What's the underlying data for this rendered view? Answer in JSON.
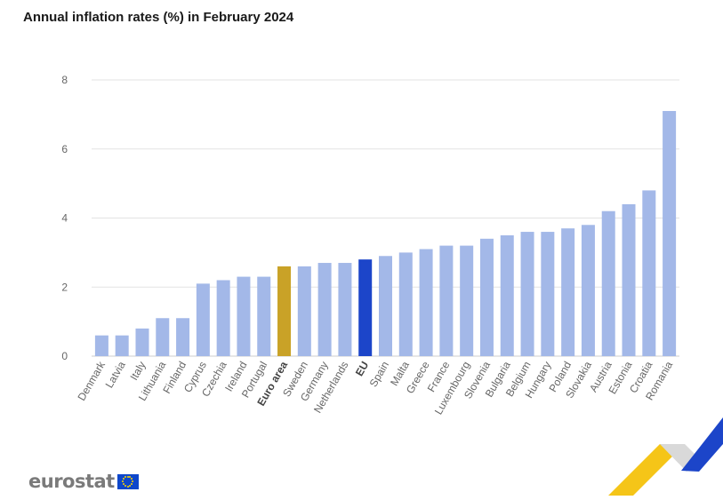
{
  "chart_data": {
    "type": "bar",
    "title": "Annual inflation rates (%) in February 2024",
    "xlabel": "",
    "ylabel": "",
    "ylim": [
      0,
      8
    ],
    "yticks": [
      "0",
      "2",
      "4",
      "6",
      "8"
    ],
    "grid": true,
    "categories": [
      "Denmark",
      "Latvia",
      "Italy",
      "Lithuania",
      "Finland",
      "Cyprus",
      "Czechia",
      "Ireland",
      "Portugal",
      "Euro area",
      "Sweden",
      "Germany",
      "Netherlands",
      "EU",
      "Spain",
      "Malta",
      "Greece",
      "France",
      "Luxembourg",
      "Slovenia",
      "Bulgaria",
      "Belgium",
      "Hungary",
      "Poland",
      "Slovakia",
      "Austria",
      "Estonia",
      "Croatia",
      "Romania"
    ],
    "values": [
      0.6,
      0.6,
      0.8,
      1.1,
      1.1,
      2.1,
      2.2,
      2.3,
      2.3,
      2.6,
      2.6,
      2.7,
      2.7,
      2.8,
      2.9,
      3.0,
      3.1,
      3.2,
      3.2,
      3.4,
      3.5,
      3.6,
      3.6,
      3.7,
      3.8,
      4.2,
      4.4,
      4.8,
      7.1
    ],
    "highlight": {
      "Euro area": "#c9a227",
      "EU": "#1c45c9"
    },
    "bold_labels": [
      "Euro area",
      "EU"
    ],
    "colors": {
      "default_bar": "#a3b8e8",
      "grid": "#e3e3e3"
    }
  },
  "branding": {
    "logo_text": "eurostat",
    "flag_icon": "eu-flag-icon",
    "decoration": "eurostat-chevron-decoration"
  }
}
